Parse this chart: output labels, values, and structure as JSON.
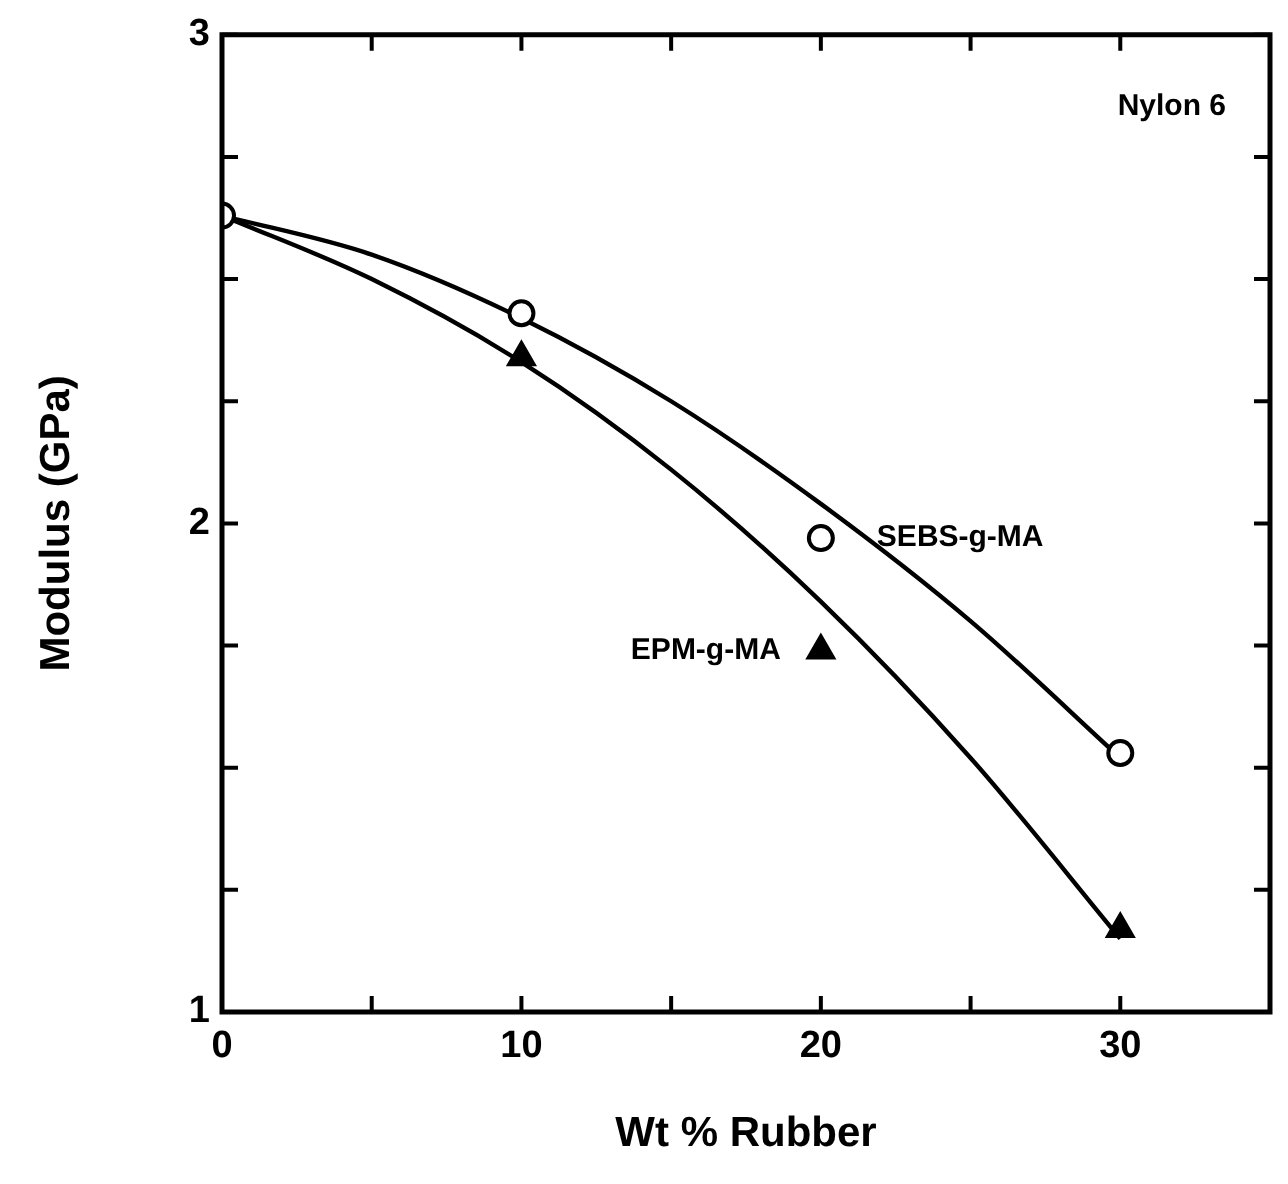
{
  "chart_data": {
    "type": "scatter",
    "xlabel": "Wt % Rubber",
    "ylabel": "Modulus (GPa)",
    "annotations": [
      "Nylon 6"
    ],
    "xlim": [
      0,
      35
    ],
    "xticks": [
      0,
      {
        "value": 5,
        "label": null
      },
      10,
      {
        "value": 15,
        "label": null
      },
      20,
      {
        "value": 25,
        "label": null
      },
      30,
      {
        "value": 35,
        "label": null
      }
    ],
    "ylim": [
      1,
      3
    ],
    "yticks": [
      1,
      {
        "value": 1.25,
        "label": null
      },
      {
        "value": 1.5,
        "label": null
      },
      {
        "value": 1.75,
        "label": null
      },
      2,
      {
        "value": 2.25,
        "label": null
      },
      {
        "value": 2.5,
        "label": null
      },
      {
        "value": 2.75,
        "label": null
      },
      3
    ],
    "grid": false,
    "legend": false,
    "series": [
      {
        "name": "SEBS-g-MA",
        "color": "#000000",
        "marker": "circle",
        "x": [
          0,
          10,
          20,
          30
        ],
        "values": [
          2.63,
          2.43,
          1.97,
          1.53
        ]
      },
      {
        "name": "EPM-g-MA",
        "color": "#000000",
        "marker": "triangle",
        "x": [
          10,
          20,
          30
        ],
        "values": [
          2.34,
          1.74,
          1.17
        ]
      },
      {
        "type": "line",
        "color": "#000000",
        "marker": "none",
        "x": [
          0,
          5,
          10,
          15,
          20,
          25,
          30
        ],
        "values": [
          2.63,
          2.55,
          2.42,
          2.25,
          2.04,
          1.8,
          1.52
        ]
      },
      {
        "type": "line",
        "color": "#000000",
        "marker": "none",
        "x": [
          0,
          5,
          10,
          15,
          20,
          25,
          30
        ],
        "values": [
          2.63,
          2.5,
          2.33,
          2.11,
          1.84,
          1.52,
          1.15
        ]
      }
    ]
  }
}
